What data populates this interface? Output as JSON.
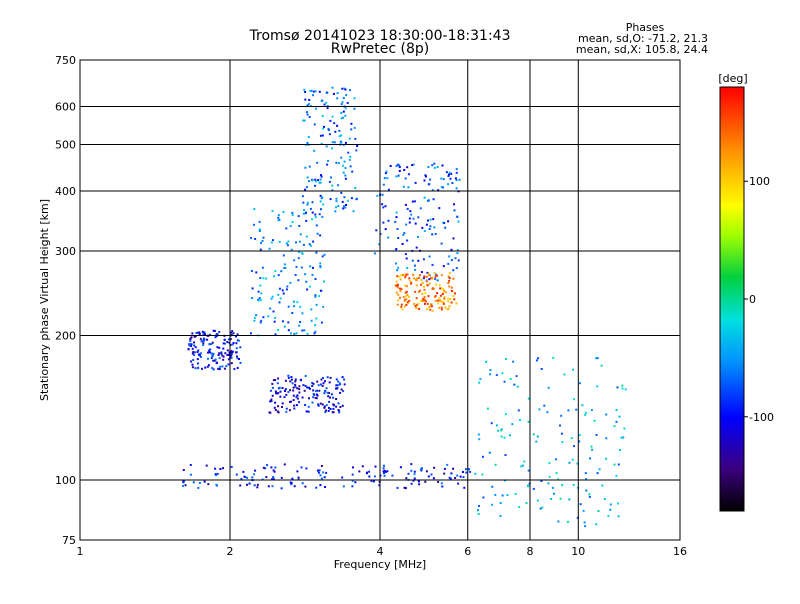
{
  "chart_data": {
    "type": "scatter",
    "title": "Tromsø 20141023 18:30:00-18:31:43",
    "subtitle": "RwPretec (8p)",
    "xlabel": "Frequency [MHz]",
    "ylabel": "Stationary phase Virtual Height [km]",
    "x_scale": "log",
    "y_scale": "log",
    "xlim": [
      1,
      16
    ],
    "ylim": [
      75,
      750
    ],
    "x_ticks": [
      1,
      2,
      4,
      6,
      8,
      10,
      16
    ],
    "y_ticks": [
      75,
      100,
      200,
      300,
      400,
      500,
      600,
      750
    ],
    "grid": true,
    "stats_title": "Phases",
    "stats_lines": [
      "mean, sd,O: -71.2, 21.3",
      "mean, sd,X: 105.8, 24.4"
    ],
    "colorbar": {
      "label": "[deg]",
      "range": [
        -180,
        180
      ],
      "ticks": [
        100,
        0,
        -100
      ],
      "colormap": "rainbow"
    },
    "clusters": [
      {
        "region": "sporadic-E trace",
        "x": [
          1.6,
          6.1
        ],
        "y": [
          96,
          108
        ],
        "phase": -95
      },
      {
        "region": "low band trace",
        "x": [
          2.4,
          3.4
        ],
        "y": [
          138,
          165
        ],
        "phase": -105
      },
      {
        "region": "low-frequency group",
        "x": [
          1.65,
          2.1
        ],
        "y": [
          170,
          205
        ],
        "phase": -100
      },
      {
        "region": "rising branch",
        "x": [
          2.2,
          3.1
        ],
        "y": [
          200,
          370
        ],
        "phase": -55
      },
      {
        "region": "upper cluster",
        "x": [
          2.8,
          3.6
        ],
        "y": [
          360,
          660
        ],
        "phase": -65
      },
      {
        "region": "F-region trace",
        "x": [
          3.9,
          5.8
        ],
        "y": [
          260,
          460
        ],
        "phase": -75
      },
      {
        "region": "orange group",
        "x": [
          4.3,
          5.7
        ],
        "y": [
          225,
          270
        ],
        "phase": 130
      },
      {
        "region": "scattered high-frequency",
        "x": [
          6.1,
          12.5
        ],
        "y": [
          80,
          180
        ],
        "phase": -40
      }
    ]
  }
}
